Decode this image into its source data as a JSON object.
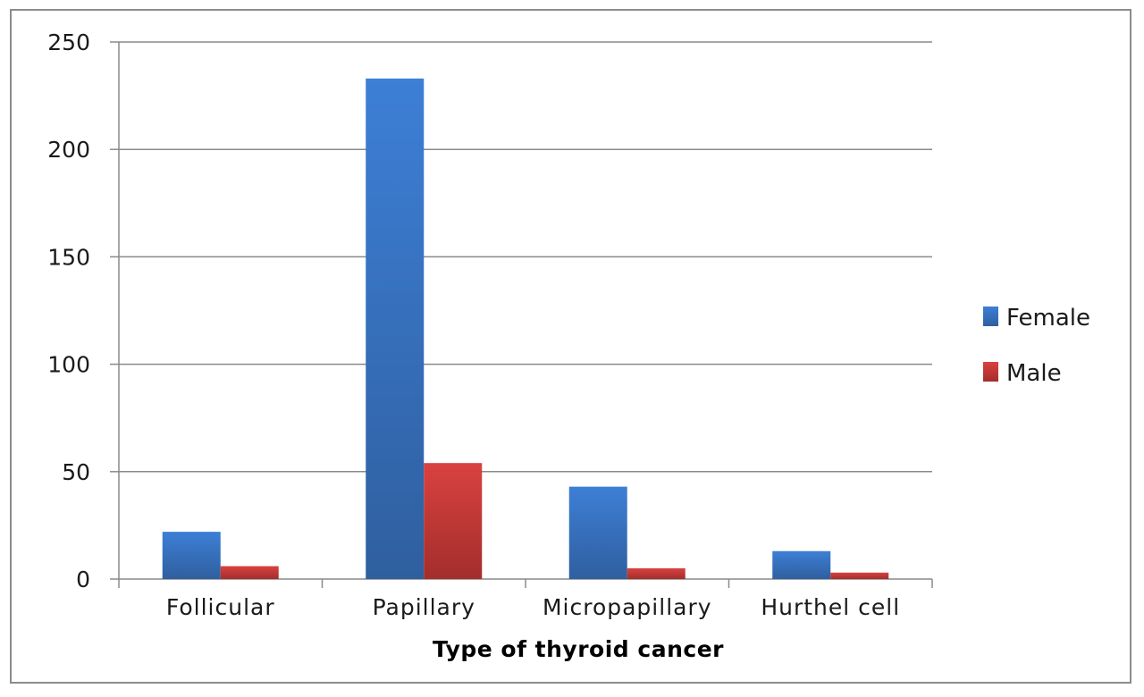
{
  "chart_data": {
    "type": "bar",
    "title": "",
    "xlabel": "Type of thyroid cancer",
    "ylabel": "",
    "categories": [
      "Follicular",
      "Papillary",
      "Micropapillary",
      "Hurthel cell"
    ],
    "series": [
      {
        "name": "Female",
        "color": "#3a74c4",
        "values": [
          22,
          233,
          43,
          13
        ]
      },
      {
        "name": "Male",
        "color": "#c0393a",
        "values": [
          6,
          54,
          5,
          3
        ]
      }
    ],
    "ylim": [
      0,
      250
    ],
    "yticks": [
      0,
      50,
      100,
      150,
      200,
      250
    ],
    "grid": true,
    "legend_position": "right"
  }
}
